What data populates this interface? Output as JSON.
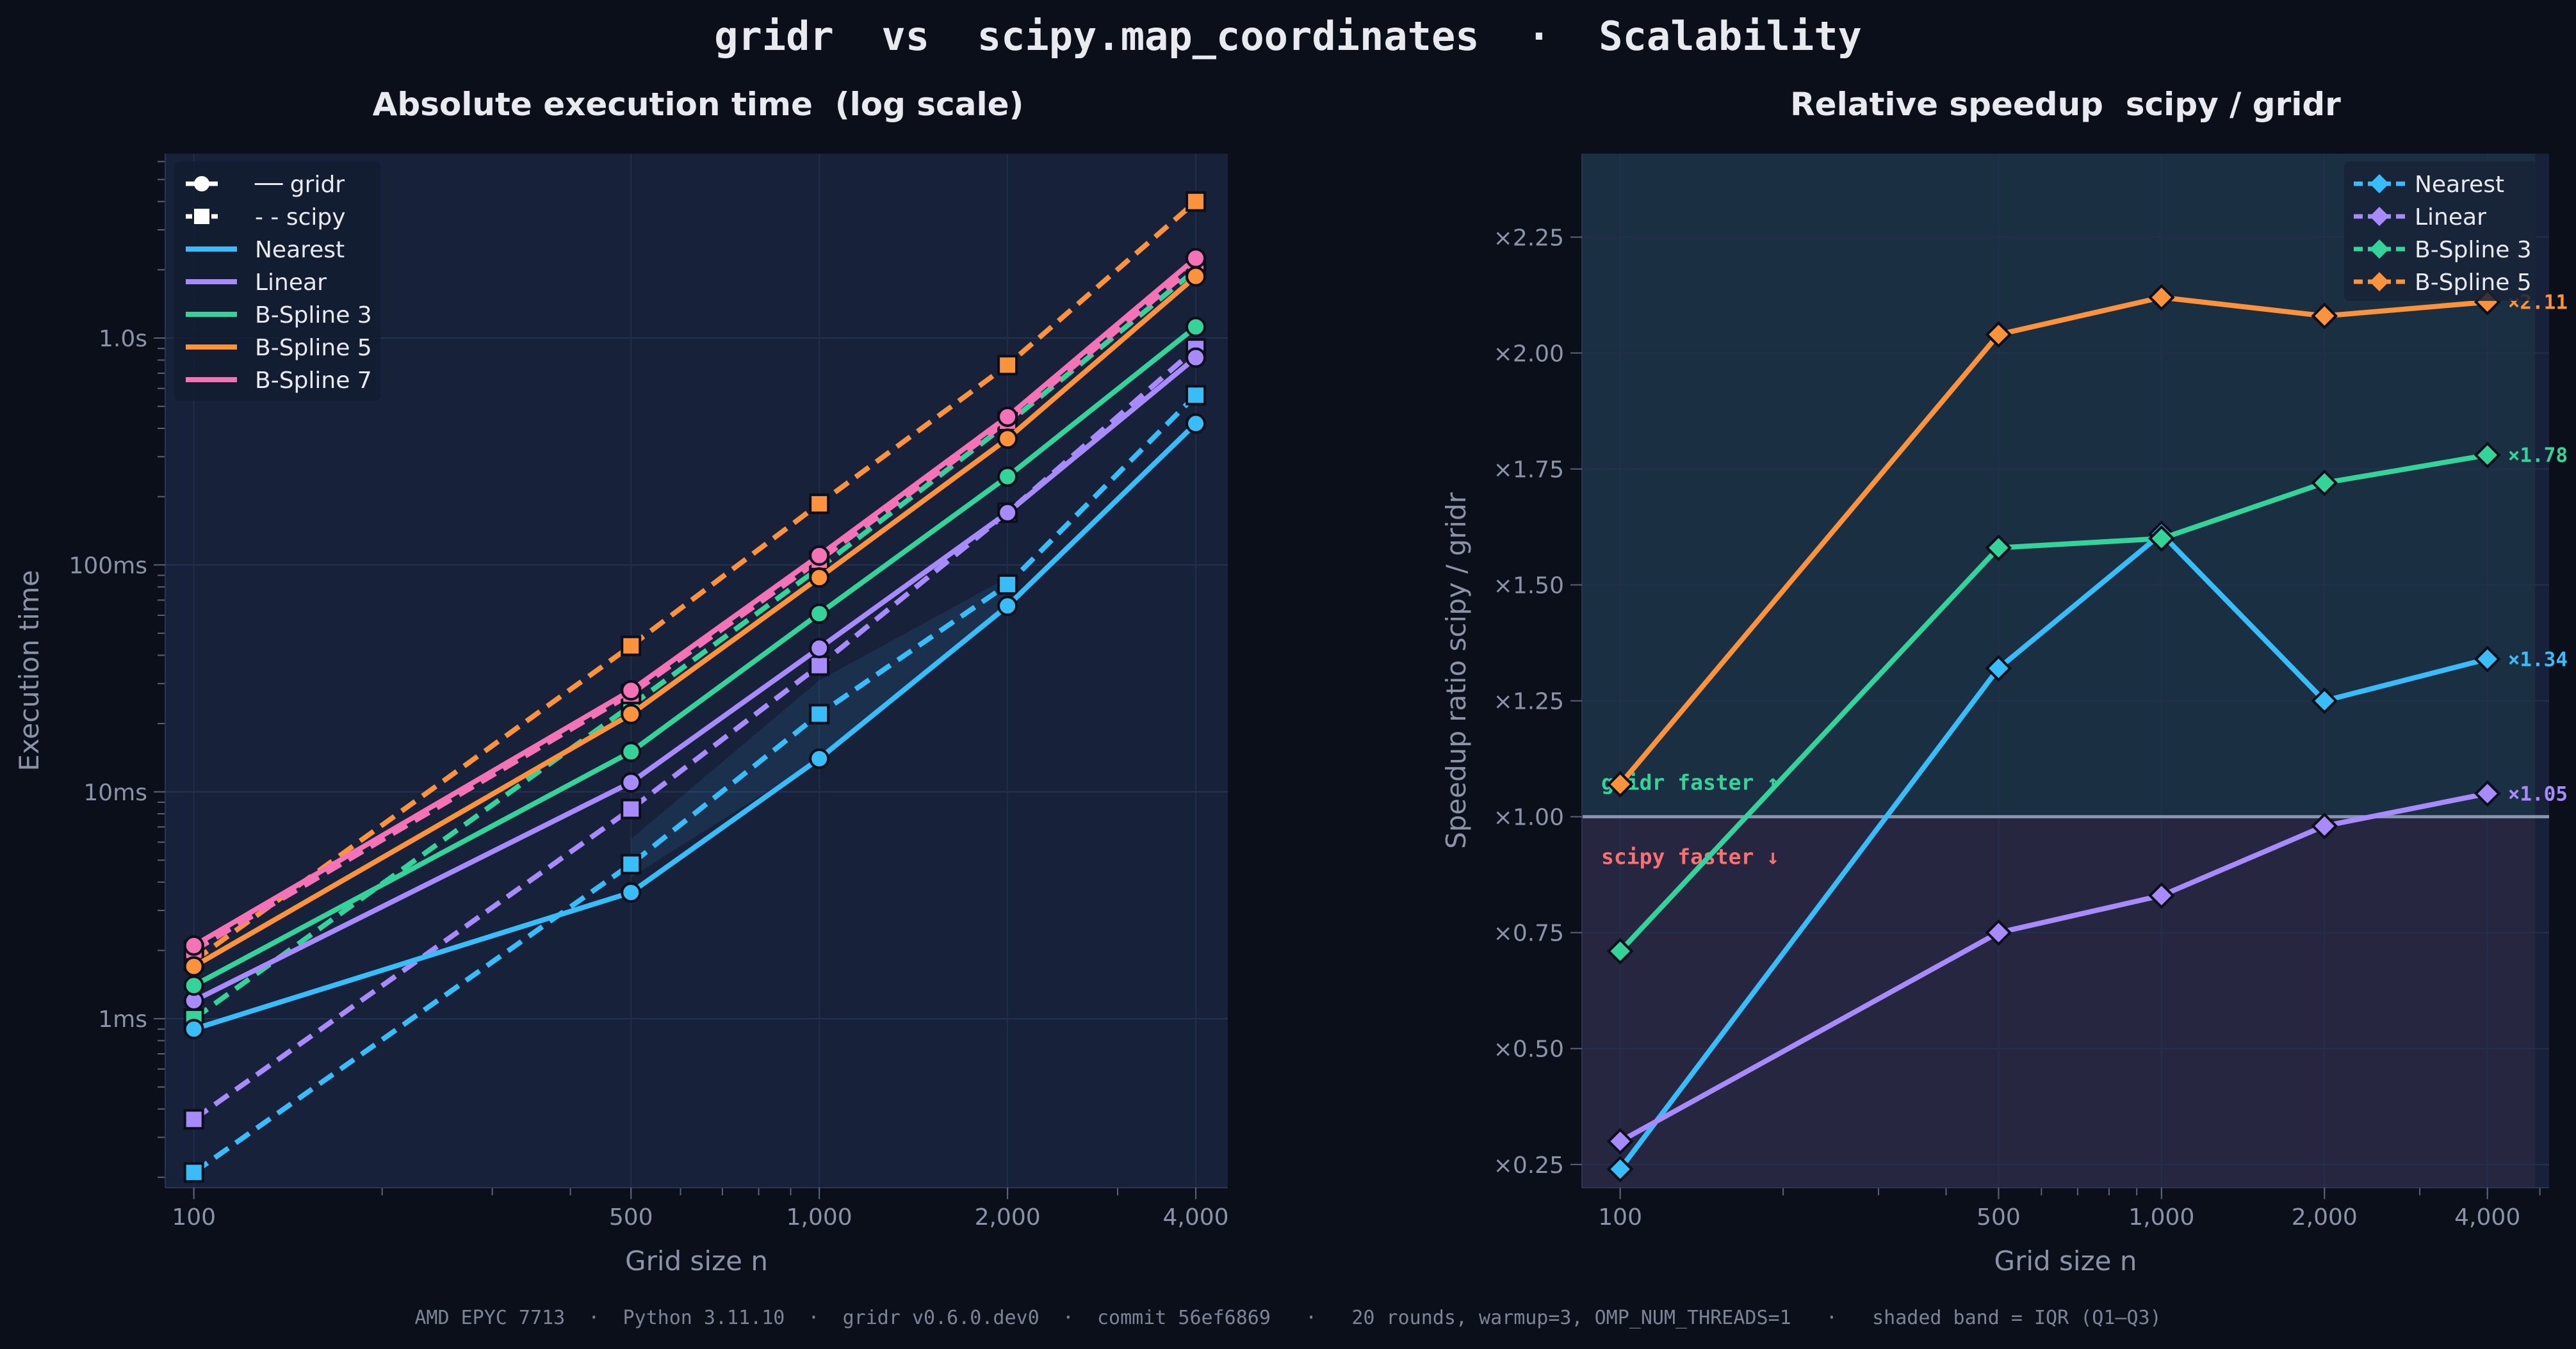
{
  "figure": {
    "suptitle": "gridr  vs  scipy.map_coordinates  ·  Scalability",
    "footer": "AMD EPYC 7713  ·  Python 3.11.10  ·  gridr v0.6.0.dev0  ·  commit 56ef6869   ·   20 rounds, warmup=3, OMP_NUM_THREADS=1   ·   shaded band = IQR (Q1–Q3)"
  },
  "colors": {
    "background": "#0b0f19",
    "axes_face": "#172139",
    "Nearest": "#38bdf8",
    "Linear": "#a78bfa",
    "B-Spline 3": "#34d399",
    "B-Spline 5": "#fb923c",
    "B-Spline 7": "#f472b6",
    "gridr_faster": "#34d399",
    "scipy_faster": "#f87171"
  },
  "chart_data": [
    {
      "type": "line",
      "title": "Absolute execution time  (log scale)",
      "xlabel": "Grid size n",
      "ylabel": "Execution time",
      "xscale": "log",
      "yscale": "log",
      "x": [
        100,
        500,
        1000,
        2000,
        4000
      ],
      "x_tick_labels": [
        "100",
        "500",
        "1,000",
        "2,000",
        "4,000"
      ],
      "xlim": [
        90,
        4500
      ],
      "ylim": [
        0.00018,
        6.5
      ],
      "y_tick_values": [
        0.001,
        0.01,
        0.1,
        1.0
      ],
      "y_tick_labels": [
        "1ms",
        "10ms",
        "100ms",
        "1.0s"
      ],
      "legend": {
        "location": "upper-left",
        "gridr_label": "── gridr",
        "scipy_label": "- - scipy"
      },
      "series": [
        {
          "name": "Nearest",
          "impl": "gridr",
          "values": [
            0.0009,
            0.0036,
            0.014,
            0.066,
            0.42
          ]
        },
        {
          "name": "Nearest",
          "impl": "scipy",
          "values": [
            0.00021,
            0.0048,
            0.022,
            0.082,
            0.56
          ]
        },
        {
          "name": "Linear",
          "impl": "gridr",
          "values": [
            0.0012,
            0.011,
            0.043,
            0.17,
            0.82
          ]
        },
        {
          "name": "Linear",
          "impl": "scipy",
          "values": [
            0.00036,
            0.0084,
            0.036,
            0.17,
            0.9
          ]
        },
        {
          "name": "B-Spline 3",
          "impl": "gridr",
          "values": [
            0.0014,
            0.015,
            0.061,
            0.245,
            1.12
          ]
        },
        {
          "name": "B-Spline 3",
          "impl": "scipy",
          "values": [
            0.001,
            0.024,
            0.097,
            0.42,
            2.0
          ]
        },
        {
          "name": "B-Spline 5",
          "impl": "gridr",
          "values": [
            0.0017,
            0.022,
            0.088,
            0.36,
            1.87
          ]
        },
        {
          "name": "B-Spline 5",
          "impl": "scipy",
          "values": [
            0.0018,
            0.044,
            0.186,
            0.76,
            4.0
          ]
        },
        {
          "name": "B-Spline 7",
          "impl": "gridr",
          "values": [
            0.0021,
            0.028,
            0.11,
            0.45,
            2.25
          ]
        },
        {
          "name": "B-Spline 7",
          "impl": "scipy",
          "values": [
            0.002,
            0.027,
            0.105,
            0.43,
            2.1
          ]
        }
      ],
      "iqr_band": {
        "series": "Nearest",
        "x": [
          500,
          1000,
          2000
        ],
        "low": [
          0.0042,
          0.014,
          0.063
        ],
        "high": [
          0.0062,
          0.031,
          0.088
        ]
      }
    },
    {
      "type": "line",
      "title": "Relative speedup  scipy / gridr",
      "xlabel": "Grid size n",
      "ylabel": "Speedup ratio  scipy / gridr",
      "xscale": "log",
      "x": [
        100,
        500,
        1000,
        2000,
        4000
      ],
      "x_tick_labels": [
        "100",
        "500",
        "1,000",
        "2,000",
        "4,000"
      ],
      "xlim": [
        85,
        5200
      ],
      "ylim": [
        0.2,
        2.43
      ],
      "y_tick_values": [
        0.25,
        0.5,
        0.75,
        1.0,
        1.25,
        1.5,
        1.75,
        2.0,
        2.25
      ],
      "y_tick_labels": [
        "×0.25",
        "×0.50",
        "×0.75",
        "×1.00",
        "×1.25",
        "×1.50",
        "×1.75",
        "×2.00",
        "×2.25"
      ],
      "reference_line": 1.0,
      "legend": {
        "location": "upper-right"
      },
      "annotations": {
        "above": "gridr faster  ↑",
        "below": "scipy faster  ↓"
      },
      "series": [
        {
          "name": "Nearest",
          "values": [
            0.24,
            1.32,
            1.61,
            1.25,
            1.34
          ],
          "end_label": "×1.34"
        },
        {
          "name": "Linear",
          "values": [
            0.3,
            0.75,
            0.83,
            0.98,
            1.05
          ],
          "end_label": "×1.05"
        },
        {
          "name": "B-Spline 3",
          "values": [
            0.71,
            1.58,
            1.6,
            1.72,
            1.78
          ],
          "end_label": "×1.78"
        },
        {
          "name": "B-Spline 5",
          "values": [
            1.07,
            2.04,
            2.12,
            2.08,
            2.11
          ],
          "end_label": "×2.11"
        }
      ]
    }
  ]
}
